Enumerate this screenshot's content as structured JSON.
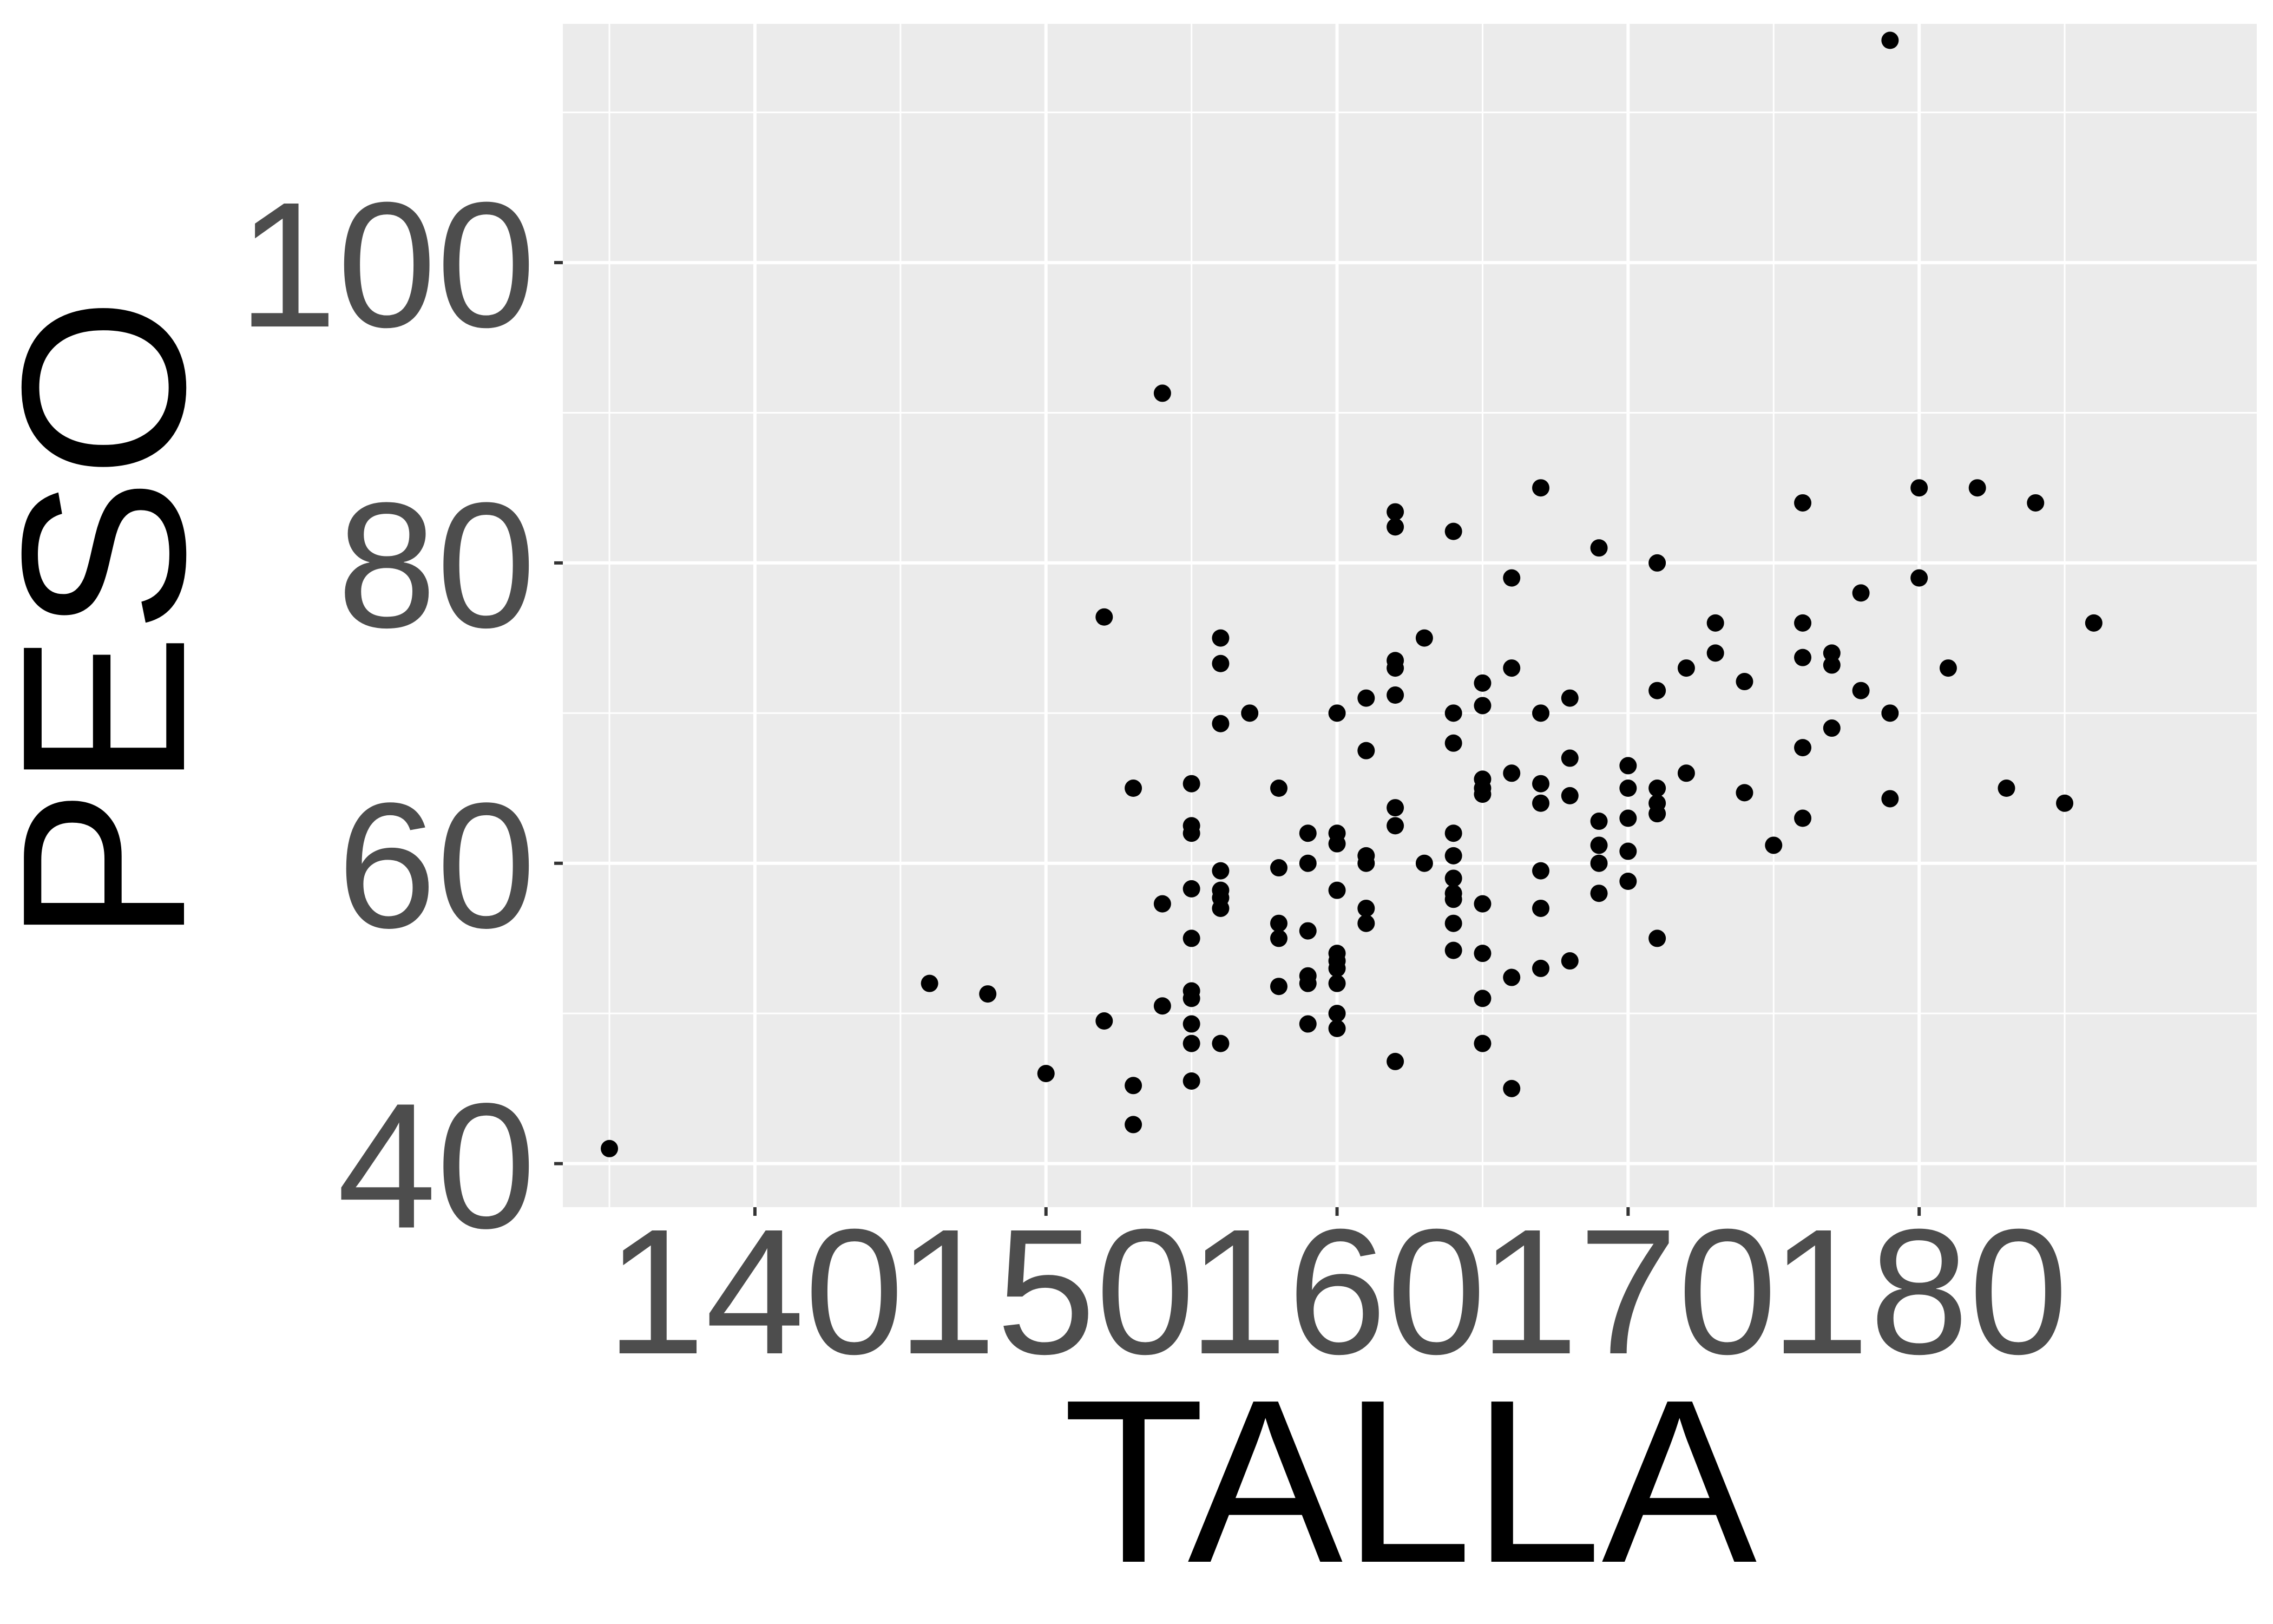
{
  "chart_data": {
    "type": "scatter",
    "xlabel": "TALLA",
    "ylabel": "PESO",
    "xlim": [
      133.4,
      191.6
    ],
    "ylim": [
      37.1,
      115.9
    ],
    "x_ticks": [
      140,
      150,
      160,
      170,
      180
    ],
    "x_tick_labels": [
      "140",
      "150",
      "160",
      "170",
      "180"
    ],
    "y_ticks": [
      40,
      60,
      80,
      100
    ],
    "y_tick_labels": [
      "40",
      "60",
      "80",
      "100"
    ],
    "grid": true,
    "legend": "none",
    "colors": {
      "panel": "#ebebeb",
      "grid": "#ffffff",
      "point": "#000000",
      "tick_text": "#4d4d4d"
    },
    "points": [
      {
        "x": 135,
        "y": 41
      },
      {
        "x": 146,
        "y": 52
      },
      {
        "x": 148,
        "y": 51.3
      },
      {
        "x": 150,
        "y": 46
      },
      {
        "x": 152,
        "y": 76.4
      },
      {
        "x": 152,
        "y": 49.5
      },
      {
        "x": 153,
        "y": 65
      },
      {
        "x": 153,
        "y": 45.2
      },
      {
        "x": 153,
        "y": 42.6
      },
      {
        "x": 154,
        "y": 91.3
      },
      {
        "x": 154,
        "y": 57.3
      },
      {
        "x": 154,
        "y": 50.5
      },
      {
        "x": 155,
        "y": 65.3
      },
      {
        "x": 155,
        "y": 62.5
      },
      {
        "x": 155,
        "y": 62
      },
      {
        "x": 155,
        "y": 58.3
      },
      {
        "x": 155,
        "y": 55
      },
      {
        "x": 155,
        "y": 51.5
      },
      {
        "x": 155,
        "y": 51
      },
      {
        "x": 155,
        "y": 49.3
      },
      {
        "x": 155,
        "y": 48
      },
      {
        "x": 155,
        "y": 45.5
      },
      {
        "x": 156,
        "y": 75
      },
      {
        "x": 156,
        "y": 73.3
      },
      {
        "x": 156,
        "y": 69.3
      },
      {
        "x": 156,
        "y": 59.5
      },
      {
        "x": 156,
        "y": 58.2
      },
      {
        "x": 156,
        "y": 57.7
      },
      {
        "x": 156,
        "y": 57
      },
      {
        "x": 156,
        "y": 48
      },
      {
        "x": 157,
        "y": 70
      },
      {
        "x": 158,
        "y": 65
      },
      {
        "x": 158,
        "y": 59.7
      },
      {
        "x": 158,
        "y": 56
      },
      {
        "x": 158,
        "y": 55
      },
      {
        "x": 158,
        "y": 51.8
      },
      {
        "x": 159,
        "y": 62
      },
      {
        "x": 159,
        "y": 60
      },
      {
        "x": 159,
        "y": 55.5
      },
      {
        "x": 159,
        "y": 52.5
      },
      {
        "x": 159,
        "y": 52
      },
      {
        "x": 159,
        "y": 49.3
      },
      {
        "x": 160,
        "y": 70
      },
      {
        "x": 160,
        "y": 62
      },
      {
        "x": 160,
        "y": 61.3
      },
      {
        "x": 160,
        "y": 58.2
      },
      {
        "x": 160,
        "y": 54
      },
      {
        "x": 160,
        "y": 53.5
      },
      {
        "x": 160,
        "y": 53
      },
      {
        "x": 160,
        "y": 52
      },
      {
        "x": 160,
        "y": 50
      },
      {
        "x": 160,
        "y": 49
      },
      {
        "x": 161,
        "y": 71
      },
      {
        "x": 161,
        "y": 67.5
      },
      {
        "x": 161,
        "y": 60.5
      },
      {
        "x": 161,
        "y": 60
      },
      {
        "x": 161,
        "y": 57
      },
      {
        "x": 161,
        "y": 56
      },
      {
        "x": 162,
        "y": 83.4
      },
      {
        "x": 162,
        "y": 82.4
      },
      {
        "x": 162,
        "y": 73.5
      },
      {
        "x": 162,
        "y": 73
      },
      {
        "x": 162,
        "y": 71.2
      },
      {
        "x": 162,
        "y": 63.7
      },
      {
        "x": 162,
        "y": 62.5
      },
      {
        "x": 162,
        "y": 46.8
      },
      {
        "x": 163,
        "y": 75
      },
      {
        "x": 163,
        "y": 60
      },
      {
        "x": 164,
        "y": 82.1
      },
      {
        "x": 164,
        "y": 70
      },
      {
        "x": 164,
        "y": 68
      },
      {
        "x": 164,
        "y": 62
      },
      {
        "x": 164,
        "y": 60.5
      },
      {
        "x": 164,
        "y": 59
      },
      {
        "x": 164,
        "y": 58
      },
      {
        "x": 164,
        "y": 57.6
      },
      {
        "x": 164,
        "y": 56
      },
      {
        "x": 164,
        "y": 54.2
      },
      {
        "x": 165,
        "y": 72
      },
      {
        "x": 165,
        "y": 70.5
      },
      {
        "x": 165,
        "y": 65.6
      },
      {
        "x": 165,
        "y": 65
      },
      {
        "x": 165,
        "y": 64.6
      },
      {
        "x": 165,
        "y": 57.3
      },
      {
        "x": 165,
        "y": 54
      },
      {
        "x": 165,
        "y": 51
      },
      {
        "x": 165,
        "y": 48
      },
      {
        "x": 166,
        "y": 79
      },
      {
        "x": 166,
        "y": 73
      },
      {
        "x": 166,
        "y": 66
      },
      {
        "x": 166,
        "y": 52.4
      },
      {
        "x": 166,
        "y": 45
      },
      {
        "x": 167,
        "y": 85
      },
      {
        "x": 167,
        "y": 70
      },
      {
        "x": 167,
        "y": 65.3
      },
      {
        "x": 167,
        "y": 64
      },
      {
        "x": 167,
        "y": 59.5
      },
      {
        "x": 167,
        "y": 57
      },
      {
        "x": 167,
        "y": 53
      },
      {
        "x": 168,
        "y": 71
      },
      {
        "x": 168,
        "y": 67
      },
      {
        "x": 168,
        "y": 64.5
      },
      {
        "x": 168,
        "y": 53.5
      },
      {
        "x": 169,
        "y": 81
      },
      {
        "x": 169,
        "y": 62.8
      },
      {
        "x": 169,
        "y": 61.2
      },
      {
        "x": 169,
        "y": 60
      },
      {
        "x": 169,
        "y": 58
      },
      {
        "x": 170,
        "y": 66.5
      },
      {
        "x": 170,
        "y": 65
      },
      {
        "x": 170,
        "y": 63
      },
      {
        "x": 170,
        "y": 60.8
      },
      {
        "x": 170,
        "y": 58.8
      },
      {
        "x": 171,
        "y": 80
      },
      {
        "x": 171,
        "y": 71.5
      },
      {
        "x": 171,
        "y": 65
      },
      {
        "x": 171,
        "y": 64
      },
      {
        "x": 171,
        "y": 63.3
      },
      {
        "x": 171,
        "y": 55
      },
      {
        "x": 172,
        "y": 73
      },
      {
        "x": 172,
        "y": 66
      },
      {
        "x": 173,
        "y": 76
      },
      {
        "x": 173,
        "y": 74
      },
      {
        "x": 174,
        "y": 72.1
      },
      {
        "x": 174,
        "y": 64.7
      },
      {
        "x": 175,
        "y": 61.2
      },
      {
        "x": 176,
        "y": 84
      },
      {
        "x": 176,
        "y": 76
      },
      {
        "x": 176,
        "y": 73.7
      },
      {
        "x": 176,
        "y": 67.7
      },
      {
        "x": 176,
        "y": 63
      },
      {
        "x": 177,
        "y": 74
      },
      {
        "x": 177,
        "y": 73.2
      },
      {
        "x": 177,
        "y": 69
      },
      {
        "x": 178,
        "y": 78
      },
      {
        "x": 178,
        "y": 71.5
      },
      {
        "x": 179,
        "y": 114.8
      },
      {
        "x": 179,
        "y": 70
      },
      {
        "x": 179,
        "y": 64.3
      },
      {
        "x": 180,
        "y": 85
      },
      {
        "x": 180,
        "y": 79
      },
      {
        "x": 181,
        "y": 73
      },
      {
        "x": 182,
        "y": 85
      },
      {
        "x": 183,
        "y": 65
      },
      {
        "x": 184,
        "y": 84
      },
      {
        "x": 185,
        "y": 64
      },
      {
        "x": 186,
        "y": 76
      }
    ]
  }
}
